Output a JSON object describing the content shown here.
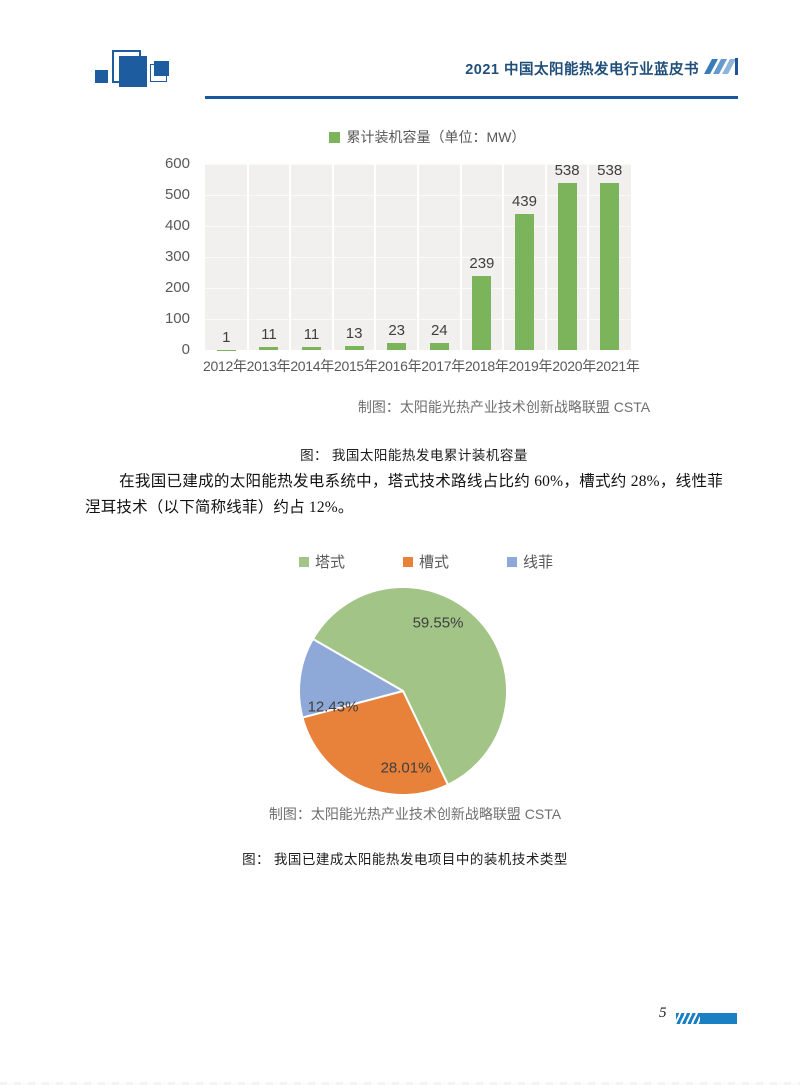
{
  "header": {
    "title": "2021 中国太阳能热发电行业蓝皮书"
  },
  "paragraph": "在我国已建成的太阳能热发电系统中，塔式技术路线占比约 60%，槽式约 28%，线性菲涅耳技术（以下简称线菲）约占 12%。",
  "footer": {
    "page_number": "5"
  },
  "chart_data": [
    {
      "type": "bar",
      "legend_label": "累计装机容量（单位：MW）",
      "categories": [
        "2012年",
        "2013年",
        "2014年",
        "2015年",
        "2016年",
        "2017年",
        "2018年",
        "2019年",
        "2020年",
        "2021年"
      ],
      "values": [
        1,
        11,
        11,
        13,
        23,
        24,
        239,
        439,
        538,
        538
      ],
      "y_ticks": [
        0,
        100,
        200,
        300,
        400,
        500,
        600
      ],
      "ylim": [
        0,
        600
      ],
      "bar_color": "#7cb45c",
      "plot_bg": "#f1f0ee",
      "grid": "vertical-white",
      "legend_position": "top",
      "source": "制图：太阳能光热产业技术创新战略联盟 CSTA",
      "caption": "图： 我国太阳能热发电累计装机容量"
    },
    {
      "type": "pie",
      "categories": [
        "塔式",
        "槽式",
        "线菲"
      ],
      "values": [
        59.55,
        28.01,
        12.43
      ],
      "labels": [
        "59.55%",
        "28.01%",
        "12.43%"
      ],
      "colors": [
        "#a2c487",
        "#e8813a",
        "#8ea9d8"
      ],
      "start_angle": 300,
      "legend_position": "top",
      "source": "制图：太阳能光热产业技术创新战略联盟 CSTA",
      "caption": "图： 我国已建成太阳能热发电项目中的装机技术类型"
    }
  ]
}
